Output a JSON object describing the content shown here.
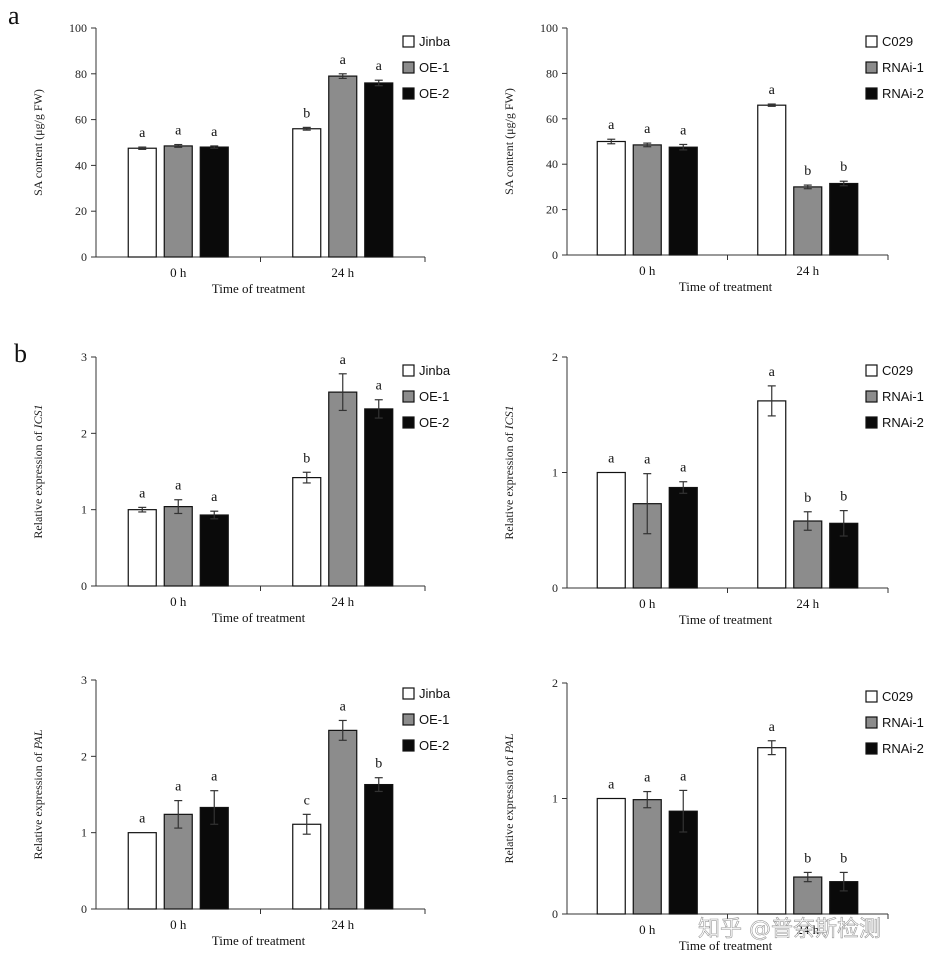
{
  "panel_labels": [
    "a",
    "b"
  ],
  "watermark": "知乎 @普奈斯检测",
  "colors": {
    "white_bar": "#ffffff",
    "gray_bar": "#8c8c8c",
    "black_bar": "#0a0a0a",
    "axis": "#333333"
  },
  "chart_data": [
    {
      "type": "bar",
      "categories": [
        "0 h",
        "24 h"
      ],
      "xlabel": "Time of treatment",
      "ylabel": "SA content (μg/g FW)",
      "ylim": [
        0,
        100
      ],
      "yticks": [
        "0",
        "20",
        "40",
        "60",
        "80",
        "100"
      ],
      "legend_position": "top-right",
      "series": [
        {
          "name": "Jinba",
          "color": "#ffffff",
          "values": [
            47.5,
            56
          ],
          "errors": [
            0.5,
            0.6
          ],
          "letters": [
            "a",
            "b"
          ]
        },
        {
          "name": "OE-1",
          "color": "#8c8c8c",
          "values": [
            48.5,
            79
          ],
          "errors": [
            0.6,
            1.0
          ],
          "letters": [
            "a",
            "a"
          ]
        },
        {
          "name": "OE-2",
          "color": "#0a0a0a",
          "values": [
            48,
            76
          ],
          "errors": [
            0.5,
            1.2
          ],
          "letters": [
            "a",
            "a"
          ]
        }
      ]
    },
    {
      "type": "bar",
      "categories": [
        "0 h",
        "24 h"
      ],
      "xlabel": "Time of treatment",
      "ylabel": "SA content (μg/g FW)",
      "ylim": [
        0,
        100
      ],
      "yticks": [
        "0",
        "20",
        "40",
        "60",
        "80",
        "100"
      ],
      "legend_position": "top-right",
      "series": [
        {
          "name": "C029",
          "color": "#ffffff",
          "values": [
            50,
            66
          ],
          "errors": [
            1.0,
            0.5
          ],
          "letters": [
            "a",
            "a"
          ]
        },
        {
          "name": "RNAi-1",
          "color": "#8c8c8c",
          "values": [
            48.5,
            30
          ],
          "errors": [
            0.8,
            0.8
          ],
          "letters": [
            "a",
            "b"
          ]
        },
        {
          "name": "RNAi-2",
          "color": "#0a0a0a",
          "values": [
            47.5,
            31.5
          ],
          "errors": [
            1.2,
            1.0
          ],
          "letters": [
            "a",
            "b"
          ]
        }
      ]
    },
    {
      "type": "bar",
      "categories": [
        "0 h",
        "24 h"
      ],
      "xlabel": "Time of treatment",
      "ylabel": "Relative expression of ICS1",
      "ylim": [
        0,
        3
      ],
      "yticks": [
        "0",
        "1",
        "2",
        "3"
      ],
      "legend_position": "top-right",
      "series": [
        {
          "name": "Jinba",
          "color": "#ffffff",
          "values": [
            1.0,
            1.42
          ],
          "errors": [
            0.03,
            0.07
          ],
          "letters": [
            "a",
            "b"
          ]
        },
        {
          "name": "OE-1",
          "color": "#8c8c8c",
          "values": [
            1.04,
            2.54
          ],
          "errors": [
            0.09,
            0.24
          ],
          "letters": [
            "a",
            "a"
          ]
        },
        {
          "name": "OE-2",
          "color": "#0a0a0a",
          "values": [
            0.93,
            2.32
          ],
          "errors": [
            0.05,
            0.12
          ],
          "letters": [
            "a",
            "a"
          ]
        }
      ]
    },
    {
      "type": "bar",
      "categories": [
        "0 h",
        "24 h"
      ],
      "xlabel": "Time of treatment",
      "ylabel": "Relative expression of ICS1",
      "ylim": [
        0,
        2
      ],
      "yticks": [
        "0",
        "1",
        "2"
      ],
      "legend_position": "top-right",
      "series": [
        {
          "name": "C029",
          "color": "#ffffff",
          "values": [
            1.0,
            1.62
          ],
          "errors": [
            0.0,
            0.13
          ],
          "letters": [
            "a",
            "a"
          ]
        },
        {
          "name": "RNAi-1",
          "color": "#8c8c8c",
          "values": [
            0.73,
            0.58
          ],
          "errors": [
            0.26,
            0.08
          ],
          "letters": [
            "a",
            "b"
          ]
        },
        {
          "name": "RNAi-2",
          "color": "#0a0a0a",
          "values": [
            0.87,
            0.56
          ],
          "errors": [
            0.05,
            0.11
          ],
          "letters": [
            "a",
            "b"
          ]
        }
      ]
    },
    {
      "type": "bar",
      "categories": [
        "0 h",
        "24 h"
      ],
      "xlabel": "Time of treatment",
      "ylabel": "Relative expression of PAL",
      "ylim": [
        0,
        3
      ],
      "yticks": [
        "0",
        "1",
        "2",
        "3"
      ],
      "legend_position": "top-right",
      "series": [
        {
          "name": "Jinba",
          "color": "#ffffff",
          "values": [
            1.0,
            1.11
          ],
          "errors": [
            0.0,
            0.13
          ],
          "letters": [
            "a",
            "c"
          ]
        },
        {
          "name": "OE-1",
          "color": "#8c8c8c",
          "values": [
            1.24,
            2.34
          ],
          "errors": [
            0.18,
            0.13
          ],
          "letters": [
            "a",
            "a"
          ]
        },
        {
          "name": "OE-2",
          "color": "#0a0a0a",
          "values": [
            1.33,
            1.63
          ],
          "errors": [
            0.22,
            0.09
          ],
          "letters": [
            "a",
            "b"
          ]
        }
      ]
    },
    {
      "type": "bar",
      "categories": [
        "0 h",
        "24 h"
      ],
      "xlabel": "Time of treatment",
      "ylabel": "Relative expression of PAL",
      "ylim": [
        0,
        2
      ],
      "yticks": [
        "0",
        "1",
        "2"
      ],
      "legend_position": "top-right",
      "series": [
        {
          "name": "C029",
          "color": "#ffffff",
          "values": [
            1.0,
            1.44
          ],
          "errors": [
            0.0,
            0.06
          ],
          "letters": [
            "a",
            "a"
          ]
        },
        {
          "name": "RNAi-1",
          "color": "#8c8c8c",
          "values": [
            0.99,
            0.32
          ],
          "errors": [
            0.07,
            0.04
          ],
          "letters": [
            "a",
            "b"
          ]
        },
        {
          "name": "RNAi-2",
          "color": "#0a0a0a",
          "values": [
            0.89,
            0.28
          ],
          "errors": [
            0.18,
            0.08
          ],
          "letters": [
            "a",
            "b"
          ]
        }
      ]
    }
  ]
}
